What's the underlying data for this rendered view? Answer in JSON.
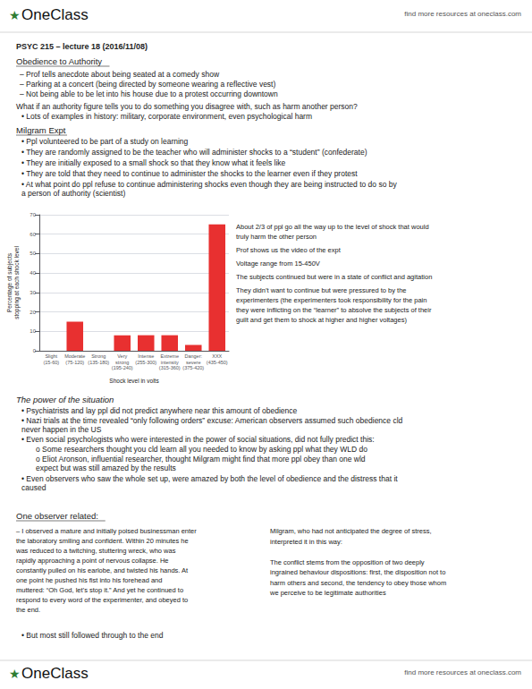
{
  "chart_data": {
    "type": "bar",
    "categories": [
      "Slight\n(15-60)",
      "Moderate\n(75-120)",
      "Strong\n(135-180)",
      "Very\nstrong\n(195-240)",
      "Intense\n(255-300)",
      "Extreme\nintensity\n(315-360)",
      "Danger:\nsevere\n(375-420)",
      "XXX\n(435-450)"
    ],
    "values": [
      0,
      15,
      0,
      8,
      8,
      8,
      3,
      65
    ],
    "color": "#e83030",
    "xlabel": "Shock level in volts",
    "ylabel": "Percentage of subjects\nstopping at each shock level",
    "ylim": [
      0,
      70
    ],
    "yticks": [
      0,
      10,
      20,
      30,
      40,
      50,
      60,
      70
    ],
    "grid": true,
    "annotations": [
      "★",
      "OneClass",
      "find more resources at oneclass.com",
      "PSYC 215 – lecture 18 (2016/11/08)",
      "Obedience to Authority",
      "– Prof tells anecdote about being seated at a comedy show",
      "– Parking at a concert (being directed by someone wearing a reflective vest)",
      "– Not being able to be let into his house due to a protest occurring downtown",
      "What if an authority figure tells you to do something you disagree with, such as harm another person?",
      "• Lots of examples in history: military, corporate environment, even psychological harm",
      "Milgram Expt",
      "• Ppl volunteered to be part of a study on learning",
      "• They are randomly assigned to be the teacher who will administer shocks to a “student” (confederate)",
      "• They are initially exposed to a small shock so that they know what it feels like",
      "• They are told that they need to continue to administer the shocks to the learner even if they protest",
      "• At what point do ppl refuse to continue administering shocks even though they are being instructed to do so by\na person of authority (scientist)",
      "About 2/3 of ppl go all the way up to the level of shock that would\ntruly harm the other person",
      "Prof shows us the video of the expt",
      "Voltage range from 15-450V",
      "The subjects continued but were in a state of conflict and agitation",
      "They didn’t want to continue but were pressured to by the\nexperimenters (the experimenters took responsibility for the pain\nthey were inflicting on the “learner” to absolve the subjects of their\nguilt and get them to shock at higher and higher voltages)",
      "The power of the situation",
      "• Psychiatrists and lay ppl did not predict anywhere near this amount of obedience",
      "• Nazi trials at the time revealed “only following orders” excuse: American observers assumed such obedience cld\nnever happen in the US",
      "• Even social psychologists who were interested in the power of social situations, did not fully predict this:",
      "o Some researchers thought you cld learn all you needed to know by asking ppl what they WLD do",
      "o Eliot Aronson, influential researcher, thought Milgram might find that more ppl obey than one wld\nexpect but was still amazed by the results",
      "• Even observers who saw the whole set up, were amazed by both the level of obedience and the distress that it\ncaused",
      "One observer related:",
      "– I observed a mature and initially poised businessman enter\nthe laboratory smiling and confident. Within 20 minutes he\nwas reduced to a twitching, stuttering wreck, who was\nrapidly approaching a point of nervous collapse. He\nconstantly pulled on his earlobe, and twisted his hands. At\none point he pushed his fist into his forehead and\nmuttered: “Oh God, let’s stop it.” And yet he continued to\nrespond to every word of the experimenter, and obeyed to\nthe end.",
      "Milgram, who had not anticipated the degree of stress,\ninterpreted it in this way:\n\nThe conflict stems from the opposition of two deeply\ningrained behaviour dispositions: first, the disposition not to\nharm others and second, the tendency to obey those whom\nwe perceive to be legitimate authorities",
      "• But most still followed through to the end",
      "★",
      "OneClass",
      "find more resources at oneclass.com"
    ]
  }
}
